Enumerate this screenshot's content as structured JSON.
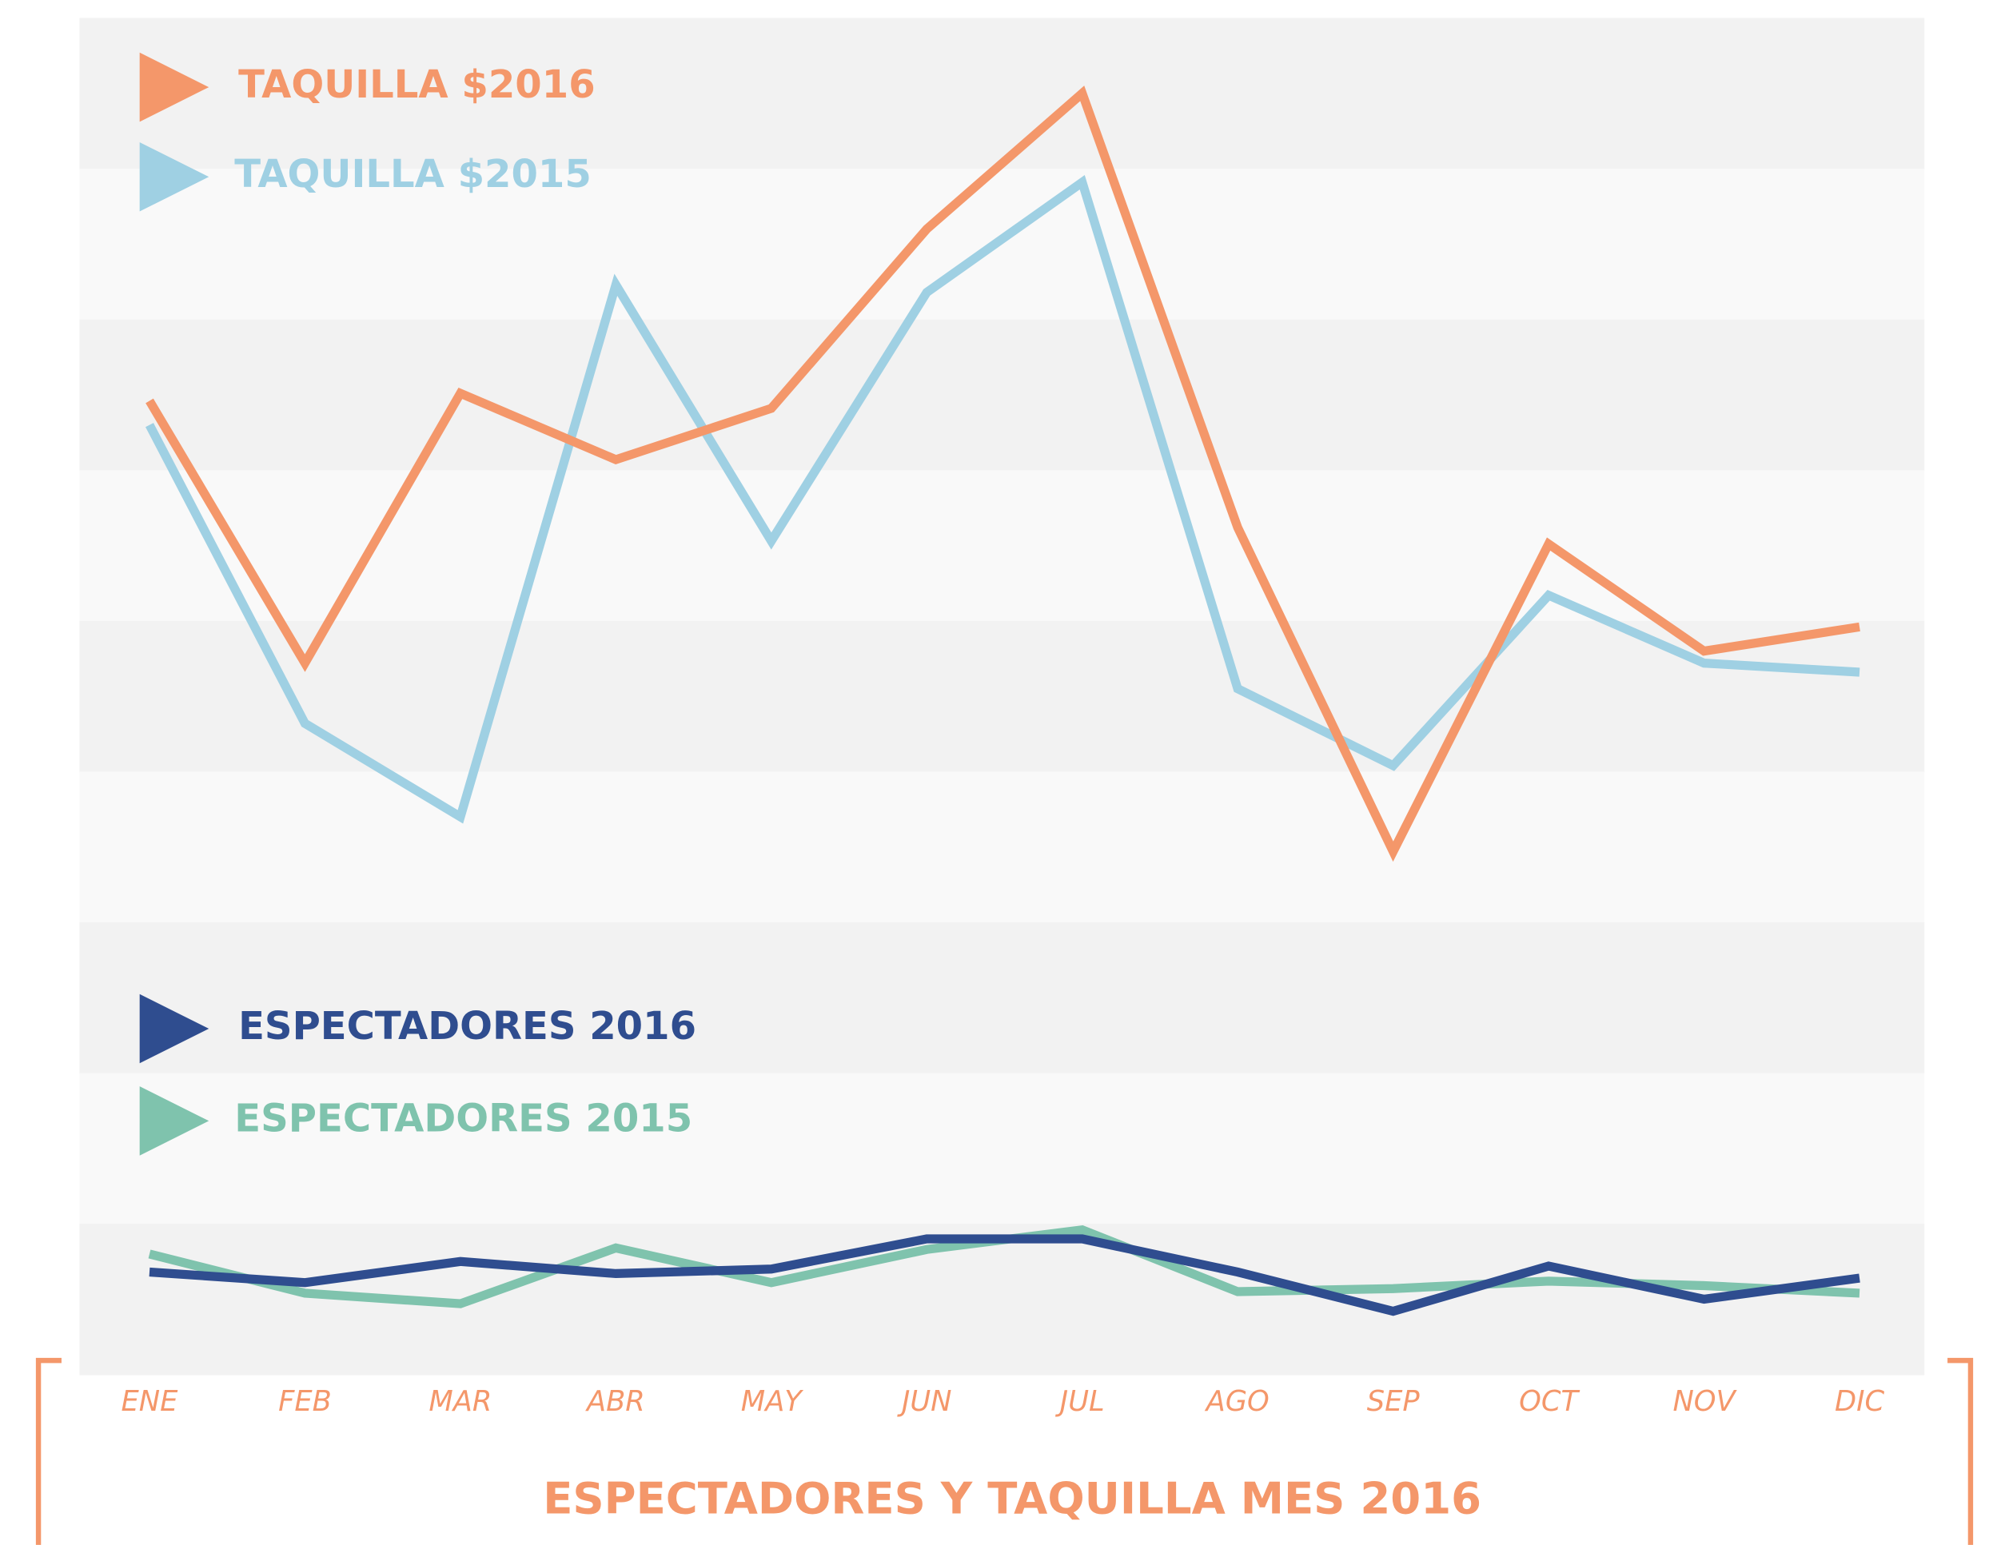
{
  "chart_data": {
    "type": "line",
    "title": "ESPECTADORES Y TAQUILLA MES 2016",
    "categories": [
      "ENE",
      "FEB",
      "MAR",
      "ABR",
      "MAY",
      "JUN",
      "JUL",
      "AGO",
      "SEP",
      "OCT",
      "NOV",
      "DIC"
    ],
    "ylim": [
      0,
      9
    ],
    "series": [
      {
        "name": "TAQUILLA $2016",
        "color": "#f4976a",
        "values": [
          6.46,
          4.72,
          6.51,
          6.07,
          6.41,
          7.6,
          8.5,
          5.62,
          3.47,
          5.51,
          4.8,
          4.96
        ]
      },
      {
        "name": "TAQUILLA $2015",
        "color": "#9fd0e3",
        "values": [
          6.3,
          4.32,
          3.7,
          7.23,
          5.53,
          7.18,
          7.91,
          4.55,
          4.04,
          5.17,
          4.72,
          4.66
        ]
      },
      {
        "name": "ESPECTADORES 2016",
        "color": "#2f4d8f",
        "values": [
          0.68,
          0.61,
          0.75,
          0.67,
          0.7,
          0.9,
          0.9,
          0.68,
          0.42,
          0.72,
          0.5,
          0.64
        ]
      },
      {
        "name": "ESPECTADORES 2015",
        "color": "#7fc3ad",
        "values": [
          0.8,
          0.54,
          0.47,
          0.84,
          0.61,
          0.83,
          0.96,
          0.55,
          0.57,
          0.62,
          0.59,
          0.54
        ]
      }
    ]
  }
}
